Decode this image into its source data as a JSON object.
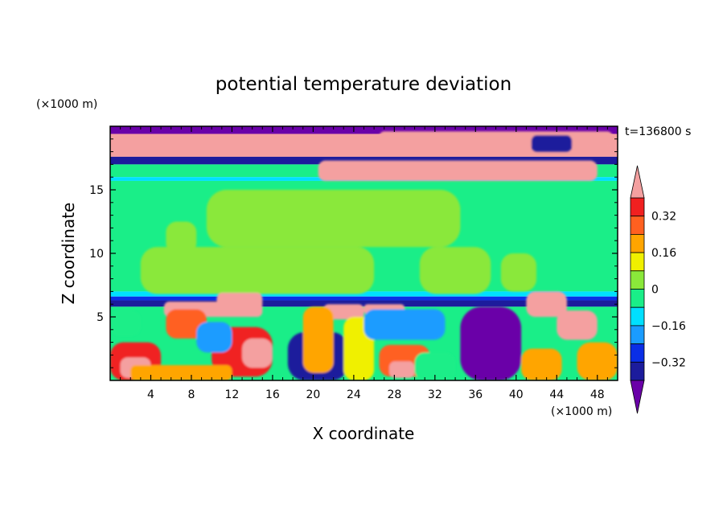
{
  "chart_data": {
    "type": "heatmap",
    "title": "potential temperature deviation",
    "xlabel": "X coordinate",
    "ylabel": "Z coordinate",
    "x_unit": "(×1000 m)",
    "y_unit": "(×1000 m)",
    "time_label": "t=136800 s",
    "xlim": [
      0,
      50
    ],
    "ylim": [
      0,
      20
    ],
    "xticks": [
      4,
      8,
      12,
      16,
      20,
      24,
      28,
      32,
      36,
      40,
      44,
      48
    ],
    "yticks": [
      5,
      10,
      15
    ],
    "colorbar": {
      "labels": [
        "0.32",
        "0.16",
        "0",
        "-0.16",
        "-0.32"
      ],
      "label_values": [
        0.32,
        0.16,
        0,
        -0.16,
        -0.32
      ],
      "levels": [
        -0.4,
        -0.32,
        -0.24,
        -0.16,
        -0.08,
        0,
        0.08,
        0.16,
        0.24,
        0.32,
        0.4
      ],
      "colors": [
        "#6a00a8",
        "#1c1c9c",
        "#0a2ee6",
        "#1a9cff",
        "#00e0ff",
        "#1aee88",
        "#8ae83a",
        "#f0f000",
        "#ffa500",
        "#ff6020",
        "#f02020",
        "#f4a0a0"
      ]
    },
    "bands": [
      {
        "z": [
          19.4,
          20
        ],
        "value": -0.5
      },
      {
        "z": [
          17.6,
          19.4
        ],
        "value": 0.5
      },
      {
        "z": [
          17.0,
          17.6
        ],
        "value": -0.36
      },
      {
        "z": [
          16.0,
          17.0
        ],
        "value": -0.02
      },
      {
        "z": [
          15.7,
          16.0
        ],
        "value": -0.12
      },
      {
        "z": [
          7.0,
          15.7
        ],
        "value": -0.02
      },
      {
        "z": [
          6.6,
          7.0
        ],
        "value": -0.14
      },
      {
        "z": [
          6.3,
          6.6
        ],
        "value": -0.28
      },
      {
        "z": [
          5.8,
          6.3
        ],
        "value": -0.4
      },
      {
        "z": [
          0,
          5.8
        ],
        "value": -0.02
      }
    ],
    "features": [
      {
        "x": [
          9.5,
          34.5
        ],
        "z": [
          10.5,
          15
        ],
        "value": 0.04
      },
      {
        "x": [
          3,
          26
        ],
        "z": [
          6.8,
          10.5
        ],
        "value": 0.04
      },
      {
        "x": [
          30.5,
          37.5
        ],
        "z": [
          6.8,
          10.5
        ],
        "value": 0.04
      },
      {
        "x": [
          5.5,
          8.5
        ],
        "z": [
          10,
          12.5
        ],
        "value": 0.04
      },
      {
        "x": [
          7,
          10
        ],
        "z": [
          7.5,
          10
        ],
        "value": 0.04
      },
      {
        "x": [
          38.5,
          42
        ],
        "z": [
          7,
          10
        ],
        "value": 0.04
      },
      {
        "x": [
          26.5,
          49.5
        ],
        "z": [
          18.4,
          19.6
        ],
        "value": 0.5
      },
      {
        "x": [
          20.5,
          48
        ],
        "z": [
          15.7,
          17.3
        ],
        "value": 0.5
      },
      {
        "x": [
          41.5,
          45.5
        ],
        "z": [
          18.0,
          19.3
        ],
        "value": -0.36
      },
      {
        "x": [
          5.3,
          15
        ],
        "z": [
          5.0,
          6.2
        ],
        "value": 0.5
      },
      {
        "x": [
          10.5,
          15
        ],
        "z": [
          5.6,
          6.9
        ],
        "value": 0.5
      },
      {
        "x": [
          21,
          25
        ],
        "z": [
          4.8,
          6.0
        ],
        "value": 0.5
      },
      {
        "x": [
          25,
          29
        ],
        "z": [
          5.2,
          6.0
        ],
        "value": 0.5
      },
      {
        "x": [
          41,
          45
        ],
        "z": [
          5.0,
          7.0
        ],
        "value": 0.5
      },
      {
        "x": [
          44,
          48
        ],
        "z": [
          3.2,
          5.5
        ],
        "value": 0.5
      },
      {
        "x": [
          34.5,
          40.5
        ],
        "z": [
          0,
          5.8
        ],
        "value": -0.5
      },
      {
        "x": [
          17.5,
          23.5
        ],
        "z": [
          0,
          3.8
        ],
        "value": -0.36
      },
      {
        "x": [
          19,
          22
        ],
        "z": [
          0.6,
          5.8
        ],
        "value": 0.2
      },
      {
        "x": [
          23,
          26
        ],
        "z": [
          0,
          5
        ],
        "value": 0.1
      },
      {
        "x": [
          25,
          33
        ],
        "z": [
          3.2,
          5.6
        ],
        "value": -0.2
      },
      {
        "x": [
          0,
          5
        ],
        "z": [
          0,
          3
        ],
        "value": 0.32
      },
      {
        "x": [
          1,
          4
        ],
        "z": [
          0.2,
          1.8
        ],
        "value": 0.4
      },
      {
        "x": [
          10,
          16
        ],
        "z": [
          0.3,
          4.2
        ],
        "value": 0.32
      },
      {
        "x": [
          13,
          16
        ],
        "z": [
          1.0,
          3.3
        ],
        "value": 0.5
      },
      {
        "x": [
          26.5,
          31.5
        ],
        "z": [
          0.3,
          2.8
        ],
        "value": 0.24
      },
      {
        "x": [
          27.5,
          30
        ],
        "z": [
          0.2,
          1.5
        ],
        "value": 0.5
      },
      {
        "x": [
          5.5,
          9.5
        ],
        "z": [
          3.3,
          5.6
        ],
        "value": 0.24
      },
      {
        "x": [
          2,
          12
        ],
        "z": [
          0,
          1.2
        ],
        "value": 0.16
      },
      {
        "x": [
          40.5,
          44.5
        ],
        "z": [
          0,
          2.5
        ],
        "value": 0.2
      },
      {
        "x": [
          46,
          50
        ],
        "z": [
          0,
          3
        ],
        "value": 0.2
      },
      {
        "x": [
          8.5,
          12
        ],
        "z": [
          2.2,
          4.6
        ],
        "value": -0.2
      },
      {
        "x": [
          30,
          34
        ],
        "z": [
          0,
          2.2
        ],
        "value": -0.08
      },
      {
        "x": [
          0,
          3
        ],
        "z": [
          3.5,
          5.5
        ],
        "value": -0.08
      }
    ]
  }
}
